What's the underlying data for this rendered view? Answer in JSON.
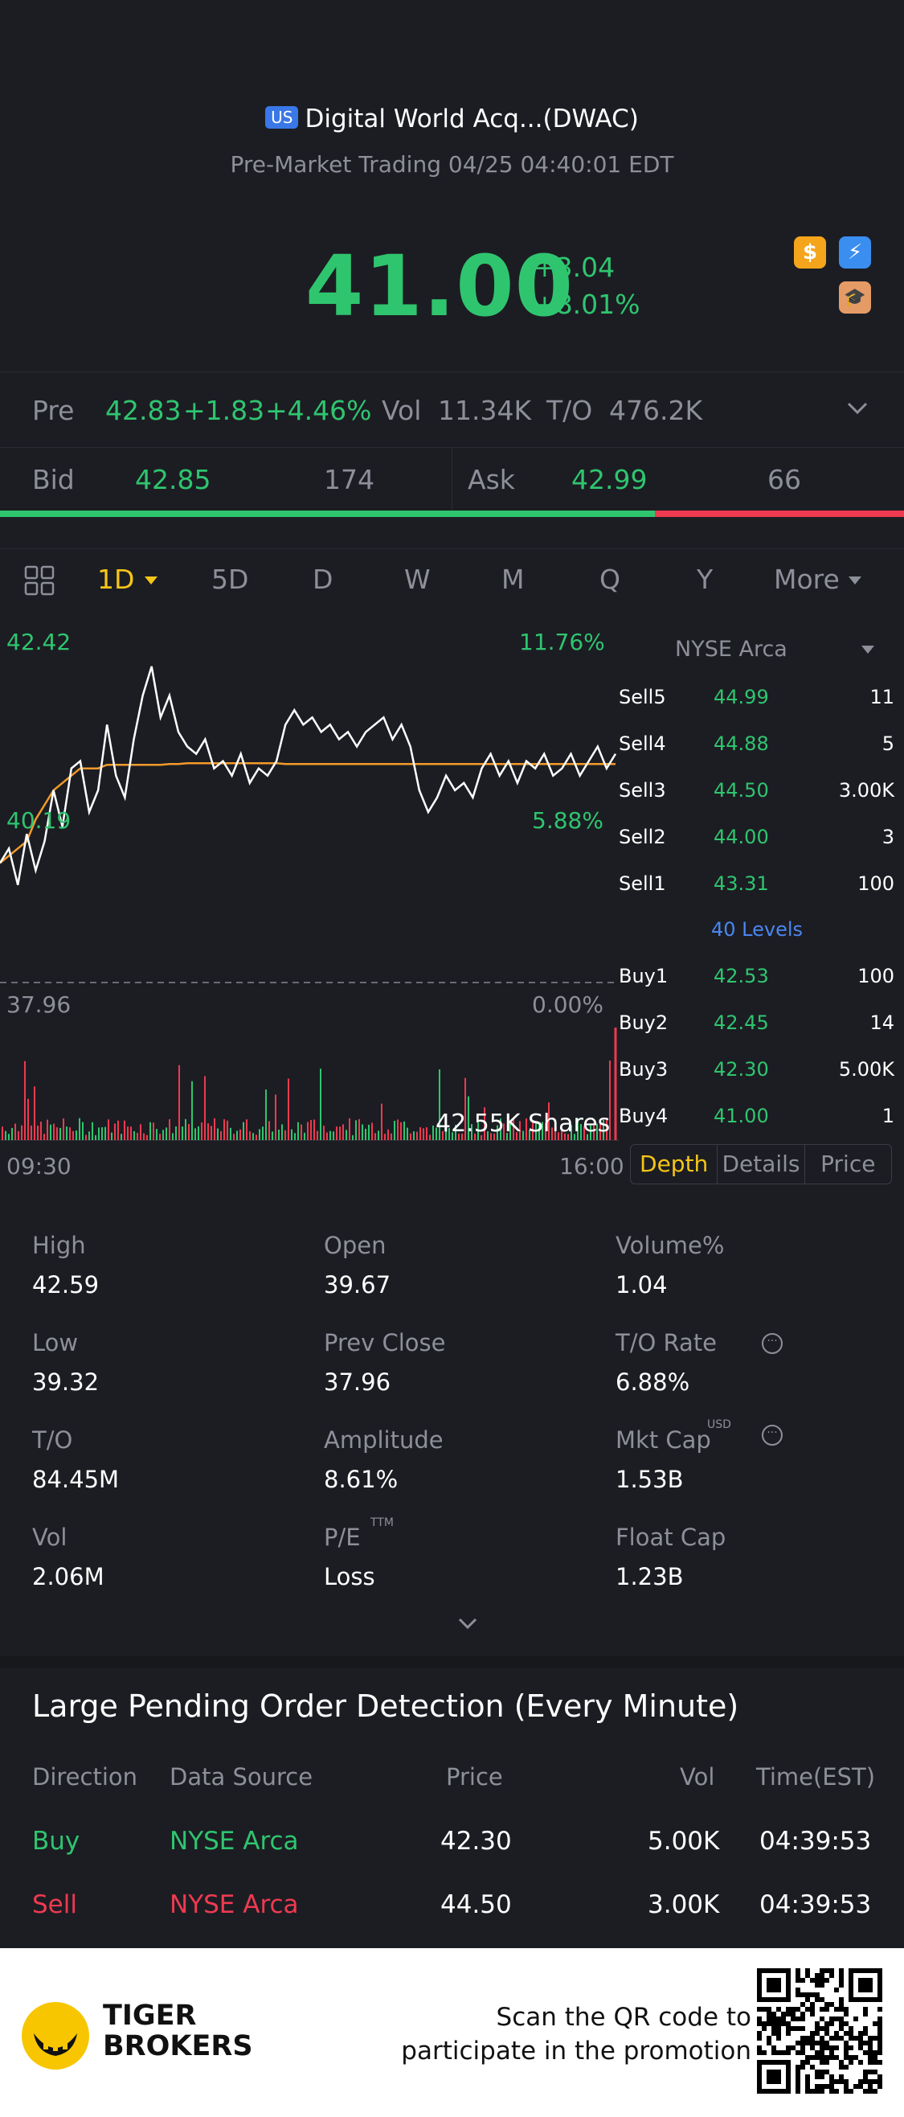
{
  "header": {
    "badge": "US",
    "title": "Digital World Acq...(DWAC)",
    "subtitle": "Pre-Market Trading 04/25 04:40:01 EDT",
    "price": "41.00",
    "change": "+3.04",
    "change_pct": "+8.01%",
    "icons": [
      "dollar-icon",
      "flash-icon",
      "education-icon"
    ],
    "colors": {
      "up": "#2fc56f",
      "down": "#ee3a50",
      "accent": "#f5c518"
    }
  },
  "stats": {
    "pre_label": "Pre",
    "pre_price": "42.83",
    "pre_change": "+1.83",
    "pre_pct": "+4.46%",
    "vol_label": "Vol",
    "vol_value": "11.34K",
    "to_label": "T/O",
    "to_value": "476.2K"
  },
  "bidask": {
    "bid_label": "Bid",
    "bid_price": "42.85",
    "bid_size": "174",
    "ask_label": "Ask",
    "ask_price": "42.99",
    "ask_size": "66",
    "bid_ratio": 0.725
  },
  "tabs": [
    "1D",
    "5D",
    "D",
    "W",
    "M",
    "Q",
    "Y",
    "More"
  ],
  "chart": {
    "high": "42.42",
    "high_pct": "11.76%",
    "mid": "40.19",
    "mid_pct": "5.88%",
    "low": "37.96",
    "low_pct": "0.00%",
    "volume_label": "42.55K Shares",
    "start_time": "09:30",
    "end_time": "16:00"
  },
  "chart_data": {
    "type": "line",
    "ylim": [
      37.96,
      42.42
    ],
    "price_series": [
      39.6,
      39.8,
      39.3,
      40.0,
      39.5,
      39.9,
      40.6,
      40.1,
      40.9,
      41.0,
      40.3,
      40.6,
      41.5,
      40.8,
      40.5,
      41.3,
      41.9,
      42.3,
      41.6,
      41.9,
      41.4,
      41.2,
      41.1,
      41.3,
      40.9,
      41.0,
      40.8,
      41.1,
      40.7,
      40.9,
      40.8,
      41.0,
      41.5,
      41.7,
      41.5,
      41.6,
      41.4,
      41.5,
      41.3,
      41.4,
      41.2,
      41.4,
      41.5,
      41.6,
      41.3,
      41.5,
      41.2,
      40.6,
      40.3,
      40.5,
      40.8,
      40.6,
      40.7,
      40.5,
      40.9,
      41.1,
      40.8,
      41.0,
      40.7,
      41.0,
      40.9,
      41.1,
      40.8,
      40.9,
      41.1,
      40.8,
      41.0,
      41.2,
      40.9,
      41.1
    ],
    "avg_series": [
      39.6,
      39.7,
      39.8,
      39.9,
      40.2,
      40.4,
      40.6,
      40.7,
      40.8,
      40.9,
      40.9,
      40.9,
      40.95,
      40.95,
      40.95,
      40.95,
      40.95,
      40.95,
      40.95,
      40.96,
      40.96,
      40.97,
      40.97,
      40.97,
      40.97,
      40.97,
      40.97,
      40.97,
      40.97,
      40.97,
      40.97,
      40.97,
      40.96,
      40.96,
      40.96,
      40.96,
      40.96,
      40.96,
      40.96,
      40.96,
      40.96,
      40.96,
      40.96,
      40.96,
      40.96,
      40.96,
      40.96,
      40.96,
      40.96,
      40.96,
      40.96,
      40.96,
      40.96,
      40.96,
      40.96,
      40.96,
      40.96,
      40.96,
      40.96,
      40.96,
      40.96,
      40.96,
      40.96,
      40.96,
      40.96,
      40.96,
      40.96,
      40.96,
      40.96,
      40.96
    ]
  },
  "orderbook": {
    "exchange": "NYSE Arca",
    "sells": [
      {
        "level": "Sell5",
        "price": "44.99",
        "qty": "11"
      },
      {
        "level": "Sell4",
        "price": "44.88",
        "qty": "5"
      },
      {
        "level": "Sell3",
        "price": "44.50",
        "qty": "3.00K"
      },
      {
        "level": "Sell2",
        "price": "44.00",
        "qty": "3"
      },
      {
        "level": "Sell1",
        "price": "43.31",
        "qty": "100"
      }
    ],
    "levels_label": "40 Levels",
    "buys": [
      {
        "level": "Buy1",
        "price": "42.53",
        "qty": "100"
      },
      {
        "level": "Buy2",
        "price": "42.45",
        "qty": "14"
      },
      {
        "level": "Buy3",
        "price": "42.30",
        "qty": "5.00K"
      },
      {
        "level": "Buy4",
        "price": "41.00",
        "qty": "1"
      }
    ],
    "tabs": [
      "Depth",
      "Details",
      "Price"
    ]
  },
  "quote": {
    "high_label": "High",
    "high": "42.59",
    "open_label": "Open",
    "open": "39.67",
    "volpct_label": "Volume%",
    "volpct": "1.04",
    "low_label": "Low",
    "low": "39.32",
    "prevclose_label": "Prev Close",
    "prevclose": "37.96",
    "torate_label": "T/O Rate",
    "torate": "6.88%",
    "to_label": "T/O",
    "to": "84.45M",
    "amp_label": "Amplitude",
    "amp": "8.61%",
    "mktcap_label": "Mkt Cap",
    "mktcap_sup": "USD",
    "mktcap": "1.53B",
    "vol_label": "Vol",
    "vol": "2.06M",
    "pe_label": "P/E",
    "pe_sup": "TTM",
    "pe": "Loss",
    "floatcap_label": "Float Cap",
    "floatcap": "1.23B"
  },
  "large_orders": {
    "title": "Large Pending Order Detection (Every Minute)",
    "headers": [
      "Direction",
      "Data Source",
      "Price",
      "Vol",
      "Time(EST)"
    ],
    "rows": [
      {
        "direction": "Buy",
        "source": "NYSE Arca",
        "price": "42.30",
        "vol": "5.00K",
        "time": "04:39:53"
      },
      {
        "direction": "Sell",
        "source": "NYSE Arca",
        "price": "44.50",
        "vol": "3.00K",
        "time": "04:39:53"
      }
    ]
  },
  "footer": {
    "brand_line1": "TIGER",
    "brand_line2": "BROKERS",
    "promo_line1": "Scan the QR code to",
    "promo_line2": "participate in the promotion"
  }
}
